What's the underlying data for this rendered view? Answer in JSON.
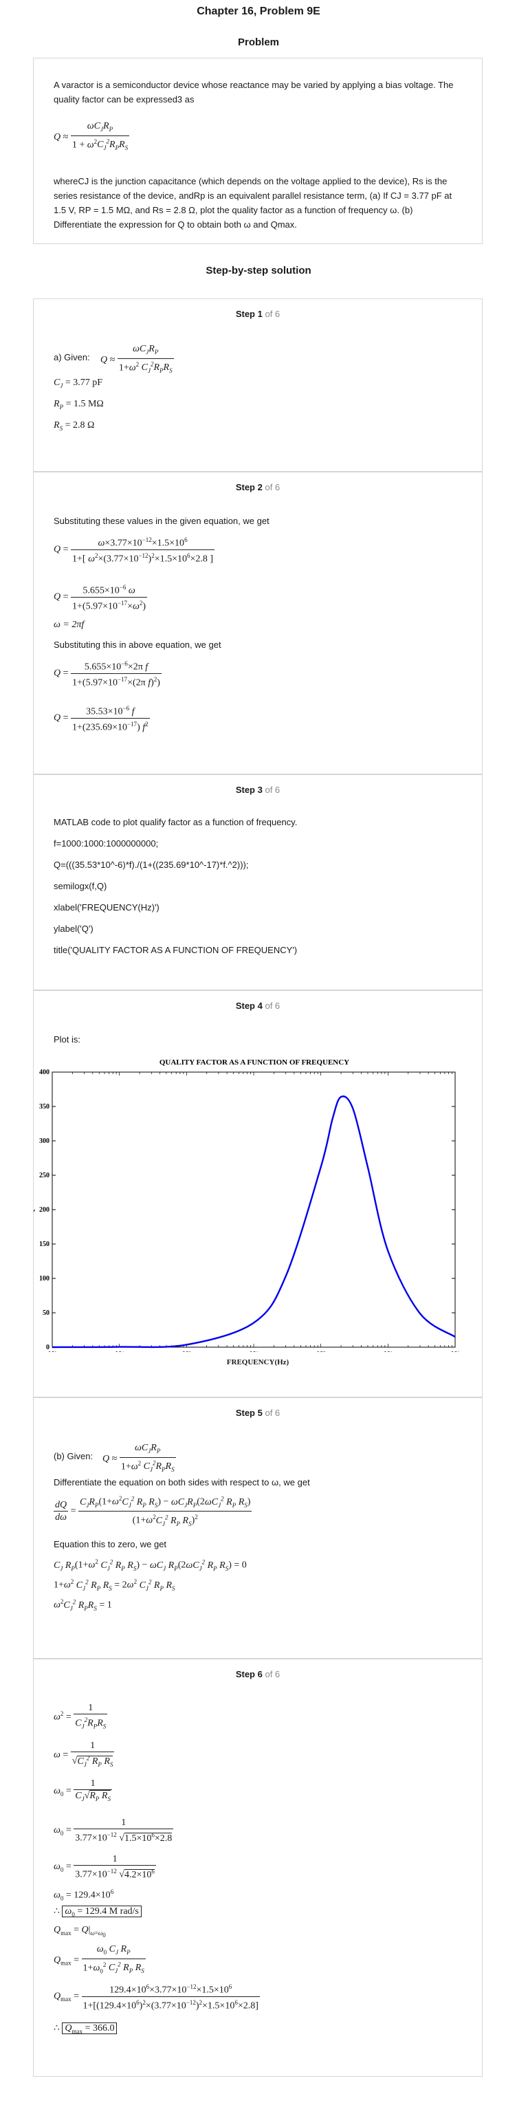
{
  "header": {
    "title": "Chapter 16, Problem 9E",
    "problem_heading": "Problem"
  },
  "problem": {
    "intro": "A varactor is a semiconductor device whose reactance may be varied by applying a bias voltage. The quality factor can be expressed3 as",
    "body": "whereCJ is the junction capacitance (which depends on the voltage applied to the device), Rs is the series resistance of the device, andRp is an equivalent parallel resistance term, (a) If CJ = 3.77 pF at 1.5 V, RP = 1.5 MΩ, and Rs = 2.8 Ω, plot the quality factor as a function of frequency ω. (b) Differentiate the expression for Q to obtain both ω and Qmax."
  },
  "solution_heading": "Step-by-step solution",
  "steps": [
    {
      "num": "Step 1",
      "of": "of 6",
      "given_label": "a) Given:",
      "cj": "C_J = 3.77 pF",
      "rp": "R_P = 1.5 MΩ",
      "rs": "R_S = 2.8 Ω"
    },
    {
      "num": "Step 2",
      "of": "of 6",
      "line1": "Substituting these values in the given equation, we get",
      "omega": "ω = 2πf",
      "line2": "Substituting this in above equation, we get"
    },
    {
      "num": "Step 3",
      "of": "of 6",
      "code": [
        "MATLAB code to plot qualify factor as a function of frequency.",
        "f=1000:1000:1000000000;",
        "Q=(((35.53*10^-6)*f)./(1+((235.69*10^-17)*f.^2)));",
        "semilogx(f,Q)",
        "xlabel('FREQUENCY(Hz)')",
        "ylabel('Q')",
        "title('QUALITY FACTOR AS A FUNCTION OF FREQUENCY')"
      ]
    },
    {
      "num": "Step 4",
      "of": "of 6",
      "plot_label": "Plot is:"
    },
    {
      "num": "Step 5",
      "of": "of 6",
      "given_label": "(b) Given:",
      "line1": "Differentiate the equation on both sides with respect to ω, we get",
      "line2": "Equation this to zero, we get"
    },
    {
      "num": "Step 6",
      "of": "of 6"
    }
  ],
  "chart_data": {
    "type": "line",
    "title": "QUALITY FACTOR AS A FUNCTION OF FREQUENCY",
    "xlabel": "FREQUENCY(Hz)",
    "ylabel": "Q",
    "xscale": "log",
    "xlim": [
      1000,
      1000000000
    ],
    "ylim": [
      0,
      400
    ],
    "x_ticks": [
      "10³",
      "10⁴",
      "10⁵",
      "10⁶",
      "10⁷",
      "10⁸",
      "10⁹"
    ],
    "y_ticks": [
      "0",
      "50",
      "100",
      "150",
      "200",
      "250",
      "300",
      "350",
      "400"
    ],
    "grid": false,
    "series_color": "#0000ee",
    "series": [
      {
        "x": [
          1000,
          10000,
          100000,
          1000000,
          3000000,
          10000000,
          15000000,
          20000000,
          30000000,
          50000000,
          100000000,
          300000000,
          1000000000
        ],
        "y": [
          0.04,
          0.36,
          3.6,
          35.4,
          103,
          262,
          333,
          364,
          347,
          262,
          140,
          49,
          15
        ]
      }
    ]
  }
}
